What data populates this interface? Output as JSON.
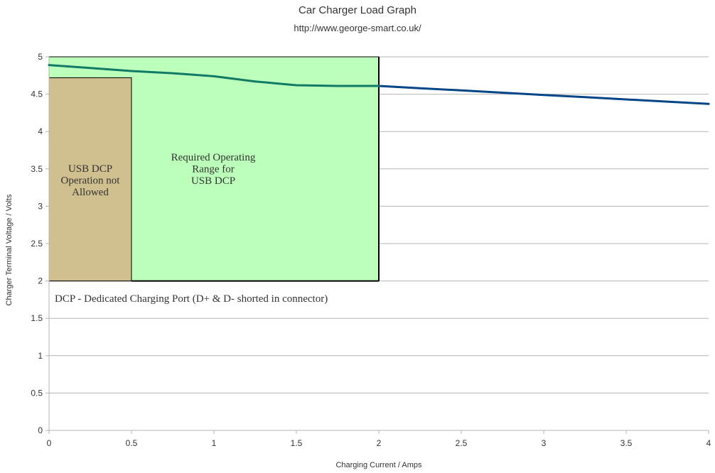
{
  "chart_data": {
    "type": "line",
    "title": "Car Charger Load Graph",
    "subtitle": "http://www.george-smart.co.uk/",
    "xlabel": "Charging Current / Amps",
    "ylabel": "Charger Terminal Voltage / Volts",
    "xlim": [
      0,
      4
    ],
    "ylim": [
      0,
      5
    ],
    "x_ticks": [
      "0",
      "0.5",
      "1",
      "1.5",
      "2",
      "2.5",
      "3",
      "3.5",
      "4"
    ],
    "y_ticks": [
      "0",
      "0.5",
      "1",
      "1.5",
      "2",
      "2.5",
      "3",
      "3.5",
      "4",
      "4.5",
      "5"
    ],
    "grid": "horizontal",
    "series": [
      {
        "x": [
          0,
          0.25,
          0.5,
          0.75,
          1.0,
          1.25,
          1.5,
          1.75,
          2.0,
          2.25,
          2.5,
          2.75,
          3.0,
          3.25,
          3.5,
          3.75,
          4.0
        ],
        "y": [
          4.89,
          4.85,
          4.81,
          4.78,
          4.74,
          4.67,
          4.62,
          4.61,
          4.61,
          4.58,
          4.55,
          4.52,
          4.49,
          4.46,
          4.43,
          4.4,
          4.37
        ]
      }
    ],
    "regions": [
      {
        "label_lines": [
          "Required Operating",
          "Range for",
          "USB DCP"
        ],
        "x": [
          0,
          2
        ],
        "y": [
          2,
          5
        ],
        "color": "#bbffbb"
      },
      {
        "label_lines": [
          "USB DCP",
          "Operation not",
          "Allowed"
        ],
        "x": [
          0,
          0.5
        ],
        "y": [
          2,
          4.72
        ],
        "color": "#d0bf8f"
      }
    ],
    "annotations": [
      "DCP - Dedicated Charging Port (D+ & D- shorted in connector)"
    ],
    "colors": {
      "line_in_range": "#117a65",
      "line_out_range": "#004586",
      "grid": "#b3b3b3"
    }
  }
}
